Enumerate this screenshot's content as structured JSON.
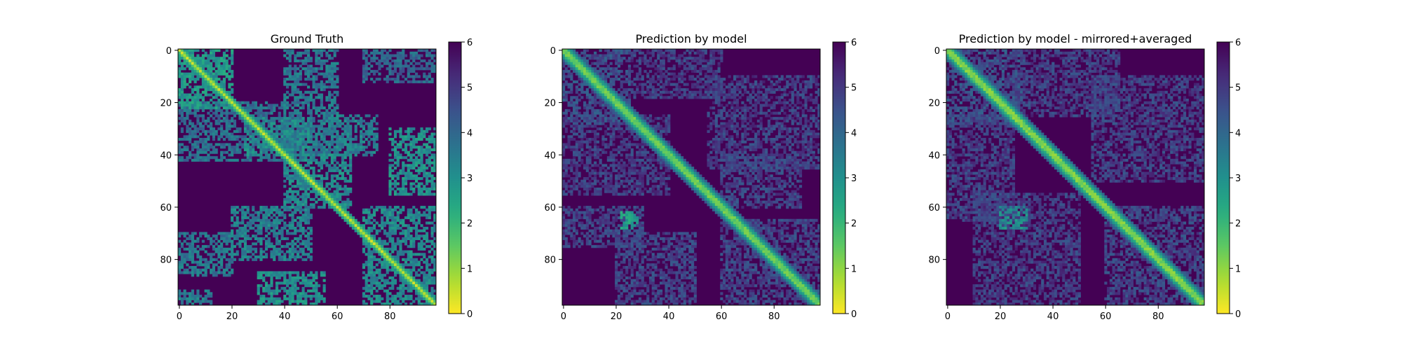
{
  "figure": {
    "colormap_name": "viridis_r",
    "colors": {
      "low": "#fde725",
      "mid": "#21918c",
      "high": "#440154",
      "background": "#ffffff",
      "axis": "#000000"
    }
  },
  "chart_data": [
    {
      "type": "heatmap",
      "title": "Ground Truth",
      "matrix_size": 98,
      "xlim": [
        0,
        97
      ],
      "ylim": [
        97,
        0
      ],
      "x_ticks": [
        0,
        20,
        40,
        60,
        80
      ],
      "y_ticks": [
        0,
        20,
        40,
        60,
        80
      ],
      "colorbar": {
        "min": 0,
        "max": 6,
        "ticks": [
          0,
          1,
          2,
          3,
          4,
          5,
          6
        ]
      },
      "background_value": 6,
      "diagonal_values": [
        0.6,
        1.6,
        2.8
      ],
      "diagonal_band_width": 2.5,
      "clusters": [
        {
          "x": [
            0,
            20
          ],
          "y": [
            0,
            22
          ],
          "value": 2.8
        },
        {
          "x": [
            0,
            40
          ],
          "y": [
            20,
            42
          ],
          "value": 3.8
        },
        {
          "x": [
            40,
            60
          ],
          "y": [
            0,
            40
          ],
          "value": 3.6
        },
        {
          "x": [
            70,
            97
          ],
          "y": [
            0,
            12
          ],
          "value": 4.0
        },
        {
          "x": [
            25,
            50
          ],
          "y": [
            26,
            40
          ],
          "value": 3.2
        },
        {
          "x": [
            55,
            75
          ],
          "y": [
            25,
            40
          ],
          "value": 3.4
        },
        {
          "x": [
            80,
            97
          ],
          "y": [
            30,
            55
          ],
          "value": 3.0
        },
        {
          "x": [
            40,
            65
          ],
          "y": [
            40,
            60
          ],
          "value": 3.2
        },
        {
          "x": [
            20,
            50
          ],
          "y": [
            60,
            80
          ],
          "value": 3.4
        },
        {
          "x": [
            0,
            20
          ],
          "y": [
            70,
            86
          ],
          "value": 3.6
        },
        {
          "x": [
            30,
            55
          ],
          "y": [
            85,
            97
          ],
          "value": 3.0
        },
        {
          "x": [
            0,
            12
          ],
          "y": [
            92,
            97
          ],
          "value": 3.5
        },
        {
          "x": [
            70,
            97
          ],
          "y": [
            60,
            97
          ],
          "value": 3.2
        }
      ]
    },
    {
      "type": "heatmap",
      "title": "Prediction by model",
      "matrix_size": 98,
      "xlim": [
        0,
        97
      ],
      "ylim": [
        97,
        0
      ],
      "x_ticks": [
        0,
        20,
        40,
        60,
        80
      ],
      "y_ticks": [
        0,
        20,
        40,
        60,
        80
      ],
      "colorbar": {
        "min": 0,
        "max": 6,
        "ticks": [
          0,
          1,
          2,
          3,
          4,
          5,
          6
        ]
      },
      "background_value": 6,
      "diagonal_values": [
        1.4,
        2.4,
        3.2,
        4.2
      ],
      "diagonal_band_width": 4,
      "clusters": [
        {
          "x": [
            0,
            25
          ],
          "y": [
            0,
            28
          ],
          "value": 4.6
        },
        {
          "x": [
            25,
            60
          ],
          "y": [
            0,
            18
          ],
          "value": 4.9
        },
        {
          "x": [
            55,
            97
          ],
          "y": [
            10,
            45
          ],
          "value": 4.9
        },
        {
          "x": [
            60,
            90
          ],
          "y": [
            40,
            60
          ],
          "value": 4.8
        },
        {
          "x": [
            0,
            40
          ],
          "y": [
            25,
            55
          ],
          "value": 4.9
        },
        {
          "x": [
            0,
            30
          ],
          "y": [
            60,
            75
          ],
          "value": 4.8
        },
        {
          "x": [
            20,
            50
          ],
          "y": [
            70,
            97
          ],
          "value": 4.8
        },
        {
          "x": [
            60,
            97
          ],
          "y": [
            65,
            97
          ],
          "value": 4.8
        },
        {
          "x": [
            22,
            28
          ],
          "y": [
            62,
            68
          ],
          "value": 2.6
        }
      ]
    },
    {
      "type": "heatmap",
      "title": "Prediction by model - mirrored+averaged",
      "matrix_size": 98,
      "xlim": [
        0,
        97
      ],
      "ylim": [
        97,
        0
      ],
      "x_ticks": [
        0,
        20,
        40,
        60,
        80
      ],
      "y_ticks": [
        0,
        20,
        40,
        60,
        80
      ],
      "colorbar": {
        "min": 0,
        "max": 6,
        "ticks": [
          0,
          1,
          2,
          3,
          4,
          5,
          6
        ]
      },
      "background_value": 6,
      "diagonal_values": [
        1.2,
        2.2,
        3.0,
        4.0
      ],
      "diagonal_band_width": 4,
      "clusters": [
        {
          "x": [
            0,
            28
          ],
          "y": [
            0,
            28
          ],
          "value": 4.6
        },
        {
          "x": [
            25,
            65
          ],
          "y": [
            0,
            25
          ],
          "value": 4.9
        },
        {
          "x": [
            0,
            25
          ],
          "y": [
            25,
            65
          ],
          "value": 4.9
        },
        {
          "x": [
            55,
            97
          ],
          "y": [
            10,
            50
          ],
          "value": 4.9
        },
        {
          "x": [
            10,
            50
          ],
          "y": [
            55,
            97
          ],
          "value": 4.9
        },
        {
          "x": [
            60,
            97
          ],
          "y": [
            60,
            97
          ],
          "value": 4.8
        },
        {
          "x": [
            20,
            30
          ],
          "y": [
            60,
            68
          ],
          "value": 3.2
        }
      ]
    }
  ]
}
